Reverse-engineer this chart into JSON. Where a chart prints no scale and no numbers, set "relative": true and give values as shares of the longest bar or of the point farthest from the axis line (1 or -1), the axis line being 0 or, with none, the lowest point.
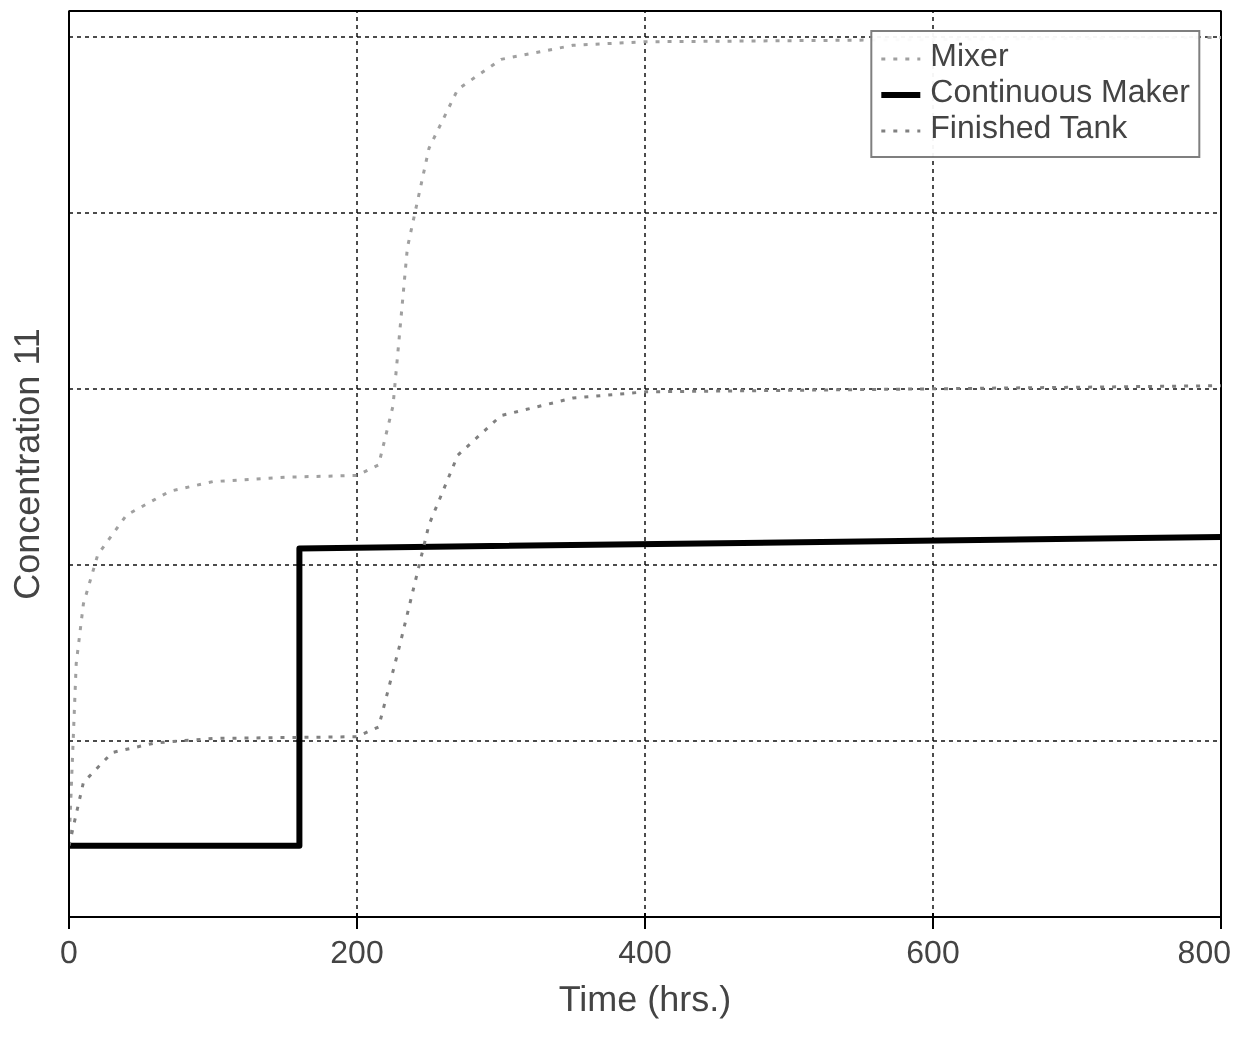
{
  "chart_data": {
    "type": "line",
    "relative": true,
    "xlabel": "Time (hrs.)",
    "ylabel": "Concentration 11",
    "xlim": [
      0,
      800
    ],
    "xticks": [
      0,
      200,
      400,
      600,
      800
    ],
    "grid": true,
    "legend": "top right",
    "tick_labels": "x",
    "series": [
      {
        "name": "Mixer",
        "color": "#a0a0a0",
        "line_style": "dotted",
        "x": [
          0,
          5,
          10,
          20,
          40,
          70,
          100,
          150,
          200,
          215,
          225,
          235,
          250,
          270,
          300,
          350,
          400,
          800
        ],
        "values": [
          0.081,
          0.288,
          0.356,
          0.412,
          0.457,
          0.484,
          0.495,
          0.5,
          0.502,
          0.514,
          0.581,
          0.761,
          0.874,
          0.941,
          0.975,
          0.991,
          0.995,
          1
        ]
      },
      {
        "name": "Continuous Maker",
        "color": "#000000",
        "line_style": "solid",
        "x": [
          0,
          160,
          160,
          800
        ],
        "values": [
          0.081,
          0.081,
          0.419,
          0.432
        ]
      },
      {
        "name": "Finished Tank",
        "color": "#808080",
        "line_style": "dotted",
        "x": [
          0,
          10,
          30,
          60,
          100,
          200,
          215,
          230,
          250,
          270,
          300,
          350,
          400,
          800
        ],
        "values": [
          0.081,
          0.153,
          0.187,
          0.198,
          0.203,
          0.205,
          0.216,
          0.311,
          0.446,
          0.525,
          0.57,
          0.59,
          0.597,
          0.604
        ]
      }
    ]
  }
}
